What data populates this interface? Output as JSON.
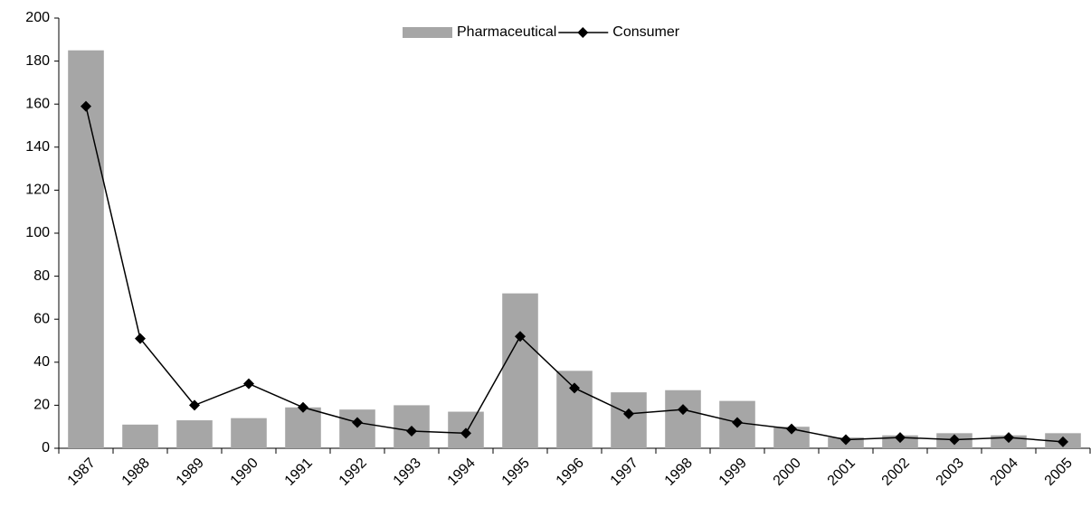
{
  "chart_data": {
    "type": "bar",
    "categories": [
      "1987",
      "1988",
      "1989",
      "1990",
      "1991",
      "1992",
      "1993",
      "1994",
      "1995",
      "1996",
      "1997",
      "1998",
      "1999",
      "2000",
      "2001",
      "2002",
      "2003",
      "2004",
      "2005"
    ],
    "series": [
      {
        "name": "Pharmaceutical",
        "type": "bar",
        "color": "#a6a6a6",
        "values": [
          185,
          11,
          13,
          14,
          19,
          18,
          20,
          17,
          72,
          36,
          26,
          27,
          22,
          10,
          5,
          6,
          7,
          6,
          7
        ]
      },
      {
        "name": "Consumer",
        "type": "line",
        "color": "#000000",
        "values": [
          159,
          51,
          20,
          30,
          19,
          12,
          8,
          7,
          52,
          28,
          16,
          18,
          12,
          9,
          4,
          5,
          4,
          5,
          3
        ]
      }
    ],
    "ylim": [
      0,
      200
    ],
    "yticks": [
      0,
      20,
      40,
      60,
      80,
      100,
      120,
      140,
      160,
      180,
      200
    ],
    "grid": false,
    "legend": "top"
  }
}
